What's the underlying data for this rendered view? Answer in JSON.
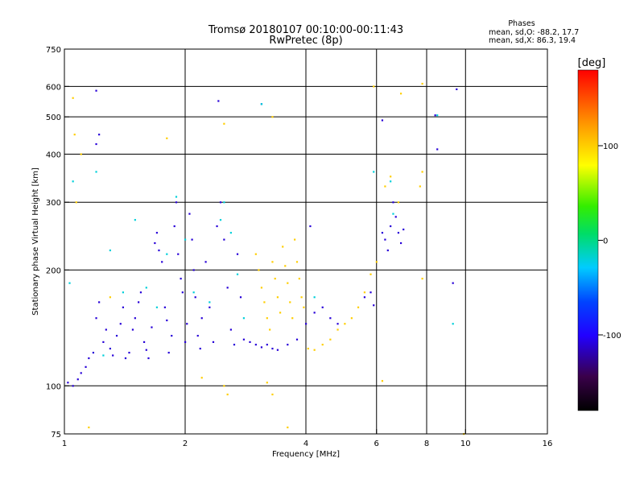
{
  "chart_data": {
    "type": "scatter",
    "title": "Tromsø 20180107 00:10:00-00:11:43",
    "subtitle": "RwPretec (8p)",
    "xlabel": "Frequency [MHz]",
    "ylabel": "Stationary phase Virtual Height [km]",
    "x_scale": "log",
    "y_scale": "log",
    "xlim": [
      1,
      16
    ],
    "ylim": [
      75,
      750
    ],
    "x_ticks": [
      1,
      2,
      4,
      6,
      8,
      10,
      16
    ],
    "x_tick_labels": [
      "1",
      "2",
      "4",
      "6",
      "8",
      "10",
      "16"
    ],
    "y_ticks": [
      75,
      100,
      200,
      300,
      400,
      500,
      600,
      750
    ],
    "y_tick_labels": [
      "75",
      "100",
      "200",
      "300",
      "400",
      "500",
      "600",
      "750"
    ],
    "x_gridlines": [
      2,
      4,
      6,
      8,
      10
    ],
    "y_gridlines": [
      100,
      200,
      300,
      400,
      500,
      600
    ],
    "grid": true,
    "stats": {
      "heading": "Phases",
      "line_o": "mean, sd,O: -88.2, 17.7",
      "line_x": "mean, sd,X:  86.3, 19.4"
    },
    "colorbar": {
      "label": "[deg]",
      "range": [
        -180,
        180
      ],
      "ticks": [
        100,
        0,
        -100
      ],
      "tick_labels": [
        "100",
        "0",
        "-100"
      ]
    },
    "series": [
      {
        "color_value_deg": -110,
        "description_points": [
          [
            1.02,
            102
          ],
          [
            1.05,
            100
          ],
          [
            1.08,
            104
          ],
          [
            1.1,
            108
          ],
          [
            1.13,
            112
          ],
          [
            1.15,
            118
          ],
          [
            1.18,
            122
          ],
          [
            1.2,
            150
          ],
          [
            1.22,
            165
          ],
          [
            1.25,
            130
          ],
          [
            1.27,
            140
          ],
          [
            1.3,
            125
          ],
          [
            1.32,
            120
          ],
          [
            1.35,
            135
          ],
          [
            1.38,
            145
          ],
          [
            1.4,
            160
          ],
          [
            1.42,
            118
          ],
          [
            1.45,
            122
          ],
          [
            1.48,
            140
          ],
          [
            1.5,
            150
          ],
          [
            1.53,
            165
          ],
          [
            1.55,
            175
          ],
          [
            1.58,
            130
          ],
          [
            1.6,
            124
          ],
          [
            1.62,
            118
          ],
          [
            1.65,
            142
          ],
          [
            1.68,
            235
          ],
          [
            1.7,
            250
          ],
          [
            1.72,
            225
          ],
          [
            1.75,
            210
          ],
          [
            1.78,
            160
          ],
          [
            1.8,
            148
          ],
          [
            1.82,
            122
          ],
          [
            1.85,
            135
          ],
          [
            1.88,
            260
          ],
          [
            1.9,
            300
          ],
          [
            1.92,
            220
          ],
          [
            1.95,
            190
          ],
          [
            1.97,
            175
          ],
          [
            2.0,
            130
          ],
          [
            2.02,
            145
          ],
          [
            2.05,
            280
          ],
          [
            2.08,
            240
          ],
          [
            2.1,
            200
          ],
          [
            2.12,
            170
          ],
          [
            2.15,
            135
          ],
          [
            2.18,
            125
          ],
          [
            2.2,
            150
          ],
          [
            2.25,
            210
          ],
          [
            2.3,
            160
          ],
          [
            2.35,
            130
          ],
          [
            2.4,
            260
          ],
          [
            2.45,
            300
          ],
          [
            2.5,
            240
          ],
          [
            2.55,
            180
          ],
          [
            2.6,
            140
          ],
          [
            2.65,
            128
          ],
          [
            2.7,
            220
          ],
          [
            2.75,
            170
          ],
          [
            2.8,
            132
          ],
          [
            2.9,
            130
          ],
          [
            3.0,
            128
          ],
          [
            3.1,
            126
          ],
          [
            3.2,
            128
          ],
          [
            3.3,
            125
          ],
          [
            3.4,
            124
          ],
          [
            3.6,
            128
          ],
          [
            3.8,
            132
          ],
          [
            4.0,
            145
          ],
          [
            4.2,
            155
          ],
          [
            4.4,
            160
          ],
          [
            4.6,
            150
          ],
          [
            4.8,
            145
          ],
          [
            4.1,
            260
          ],
          [
            5.6,
            170
          ],
          [
            5.8,
            175
          ],
          [
            5.9,
            162
          ],
          [
            6.2,
            250
          ],
          [
            6.3,
            240
          ],
          [
            6.4,
            225
          ],
          [
            6.5,
            260
          ],
          [
            6.6,
            300
          ],
          [
            6.7,
            275
          ],
          [
            6.8,
            250
          ],
          [
            6.9,
            235
          ],
          [
            7.0,
            255
          ],
          [
            1.2,
            585
          ],
          [
            1.22,
            450
          ],
          [
            1.2,
            425
          ],
          [
            2.42,
            550
          ],
          [
            3.1,
            540
          ],
          [
            6.2,
            490
          ],
          [
            8.4,
            505
          ],
          [
            8.5,
            412
          ],
          [
            9.5,
            590
          ],
          [
            9.3,
            185
          ]
        ]
      },
      {
        "color_value_deg": 100,
        "description_points": [
          [
            3.0,
            220
          ],
          [
            3.05,
            200
          ],
          [
            3.1,
            180
          ],
          [
            3.15,
            165
          ],
          [
            3.2,
            150
          ],
          [
            3.25,
            140
          ],
          [
            3.3,
            210
          ],
          [
            3.35,
            190
          ],
          [
            3.4,
            170
          ],
          [
            3.45,
            155
          ],
          [
            3.5,
            230
          ],
          [
            3.55,
            205
          ],
          [
            3.6,
            185
          ],
          [
            3.65,
            165
          ],
          [
            3.7,
            150
          ],
          [
            3.75,
            240
          ],
          [
            3.8,
            210
          ],
          [
            3.85,
            190
          ],
          [
            3.9,
            170
          ],
          [
            3.95,
            160
          ],
          [
            4.05,
            125
          ],
          [
            4.2,
            124
          ],
          [
            4.4,
            128
          ],
          [
            4.6,
            132
          ],
          [
            4.8,
            140
          ],
          [
            5.0,
            145
          ],
          [
            5.2,
            150
          ],
          [
            5.4,
            160
          ],
          [
            5.6,
            175
          ],
          [
            5.8,
            195
          ],
          [
            6.0,
            210
          ],
          [
            6.3,
            330
          ],
          [
            6.5,
            350
          ],
          [
            6.8,
            300
          ],
          [
            7.8,
            360
          ],
          [
            7.7,
            330
          ],
          [
            5.9,
            600
          ],
          [
            7.8,
            610
          ],
          [
            6.9,
            575
          ],
          [
            3.3,
            500
          ],
          [
            2.5,
            480
          ],
          [
            1.05,
            560
          ],
          [
            1.06,
            450
          ],
          [
            1.8,
            440
          ],
          [
            1.1,
            400
          ],
          [
            1.3,
            170
          ],
          [
            1.07,
            300
          ],
          [
            2.2,
            105
          ],
          [
            2.5,
            100
          ],
          [
            2.55,
            95
          ],
          [
            3.2,
            102
          ],
          [
            3.3,
            95
          ],
          [
            3.6,
            78
          ],
          [
            1.15,
            78
          ],
          [
            6.2,
            103
          ],
          [
            7.8,
            190
          ],
          [
            9.9,
            75
          ]
        ]
      },
      {
        "color_value_deg": -20,
        "description_points": [
          [
            1.05,
            340
          ],
          [
            1.2,
            360
          ],
          [
            1.3,
            225
          ],
          [
            1.4,
            175
          ],
          [
            1.5,
            270
          ],
          [
            1.6,
            180
          ],
          [
            1.7,
            160
          ],
          [
            1.8,
            220
          ],
          [
            2.0,
            240
          ],
          [
            2.1,
            175
          ],
          [
            2.3,
            165
          ],
          [
            2.5,
            300
          ],
          [
            2.6,
            250
          ],
          [
            2.7,
            195
          ],
          [
            2.8,
            150
          ],
          [
            3.1,
            540
          ],
          [
            4.2,
            170
          ],
          [
            5.9,
            360
          ],
          [
            8.5,
            505
          ],
          [
            9.3,
            145
          ],
          [
            1.03,
            185
          ],
          [
            1.25,
            120
          ],
          [
            1.9,
            310
          ],
          [
            2.45,
            270
          ],
          [
            6.6,
            280
          ],
          [
            6.5,
            340
          ]
        ]
      }
    ]
  }
}
